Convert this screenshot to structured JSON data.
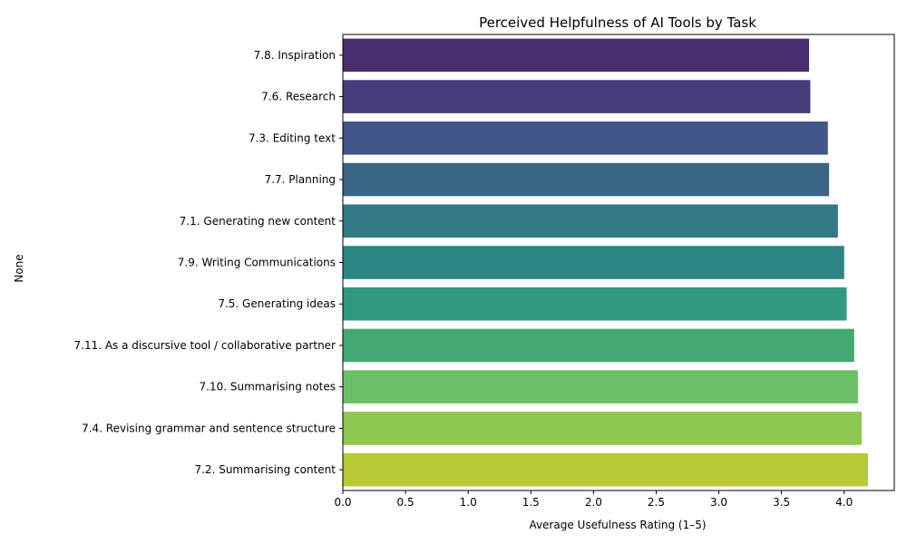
{
  "chart_data": {
    "type": "bar",
    "orientation": "horizontal",
    "title": "Perceived Helpfulness of AI Tools by Task",
    "xlabel": "Average Usefulness Rating (1–5)",
    "ylabel": "None",
    "xlim": [
      0,
      4.4
    ],
    "xticks": [
      "0.0",
      "0.5",
      "1.0",
      "1.5",
      "2.0",
      "2.5",
      "3.0",
      "3.5",
      "4.0"
    ],
    "grid": false,
    "categories": [
      "7.8. Inspiration",
      "7.6. Research",
      "7.3. Editing text",
      "7.7. Planning",
      "7.1. Generating new content",
      "7.9. Writing Communications",
      "7.5. Generating ideas",
      "7.11. As a discursive tool / collaborative partner",
      "7.10. Summarising notes",
      "7.4. Revising grammar and sentence structure",
      "7.2. Summarising content"
    ],
    "values": [
      3.72,
      3.73,
      3.87,
      3.88,
      3.95,
      4.0,
      4.02,
      4.08,
      4.11,
      4.14,
      4.19
    ],
    "colors": [
      "#472e6c",
      "#483d7a",
      "#425589",
      "#3c6686",
      "#327885",
      "#2d8683",
      "#2f9a80",
      "#43a874",
      "#6cbf69",
      "#8ec652",
      "#b7c934"
    ]
  }
}
